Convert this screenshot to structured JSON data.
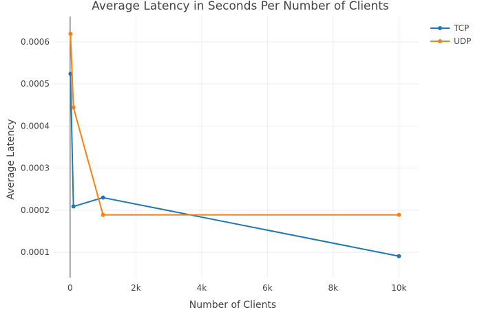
{
  "chart_data": {
    "type": "line",
    "title": "Average Latency in Seconds Per Number of Clients",
    "xlabel": "Number of Clients",
    "ylabel": "Average Latency",
    "xlim": [
      -500,
      10600
    ],
    "ylim": [
      4e-05,
      0.00066
    ],
    "x_ticks": [
      0,
      2000,
      4000,
      6000,
      8000,
      10000
    ],
    "x_tick_labels": [
      "0",
      "2k",
      "4k",
      "6k",
      "8k",
      "10k"
    ],
    "y_ticks": [
      0.0001,
      0.0002,
      0.0003,
      0.0004,
      0.0005,
      0.0006
    ],
    "y_tick_labels": [
      "0.0001",
      "0.0002",
      "0.0003",
      "0.0004",
      "0.0005",
      "0.0006"
    ],
    "grid": true,
    "legend_position": "top-right",
    "series": [
      {
        "name": "TCP",
        "color": "#1f77b4",
        "x": [
          10,
          100,
          1000,
          10000
        ],
        "y": [
          0.000524,
          0.000209,
          0.00023,
          9.1e-05
        ]
      },
      {
        "name": "UDP",
        "color": "#ff7f0e",
        "x": [
          10,
          100,
          1000,
          10000
        ],
        "y": [
          0.000619,
          0.000444,
          0.000189,
          0.000189
        ]
      }
    ]
  }
}
